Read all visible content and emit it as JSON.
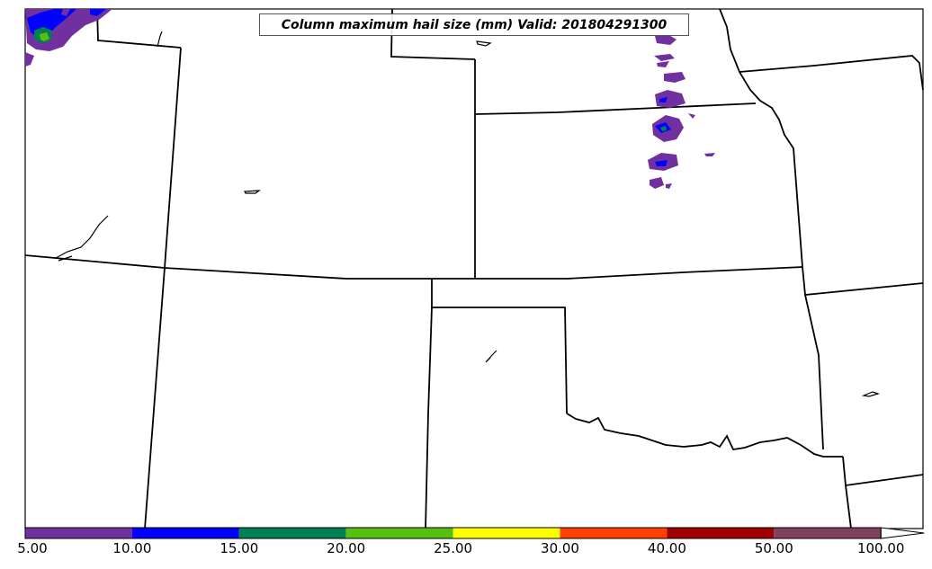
{
  "title": "Column maximum hail size (mm) Valid: 201804291300",
  "colorbar": {
    "segments": [
      {
        "from": "5.00",
        "to": "10.00",
        "color": "#7030a0"
      },
      {
        "from": "10.00",
        "to": "15.00",
        "color": "#0000ff"
      },
      {
        "from": "15.00",
        "to": "20.00",
        "color": "#008050"
      },
      {
        "from": "20.00",
        "to": "25.00",
        "color": "#55c010"
      },
      {
        "from": "25.00",
        "to": "30.00",
        "color": "#ffff00"
      },
      {
        "from": "30.00",
        "to": "40.00",
        "color": "#ff4000"
      },
      {
        "from": "40.00",
        "to": "50.00",
        "color": "#a00000"
      },
      {
        "from": "50.00",
        "to": "100.00",
        "color": "#804060"
      }
    ],
    "extend": "max",
    "tick_labels": [
      "5.00",
      "10.00",
      "15.00",
      "20.00",
      "25.00",
      "30.00",
      "40.00",
      "50.00",
      "100.00"
    ]
  },
  "colors": {
    "border": "#000000",
    "hail_5_10": "#7030a0",
    "hail_10_15": "#0000ff",
    "hail_15_20": "#008050",
    "hail_20_25": "#55c010"
  }
}
